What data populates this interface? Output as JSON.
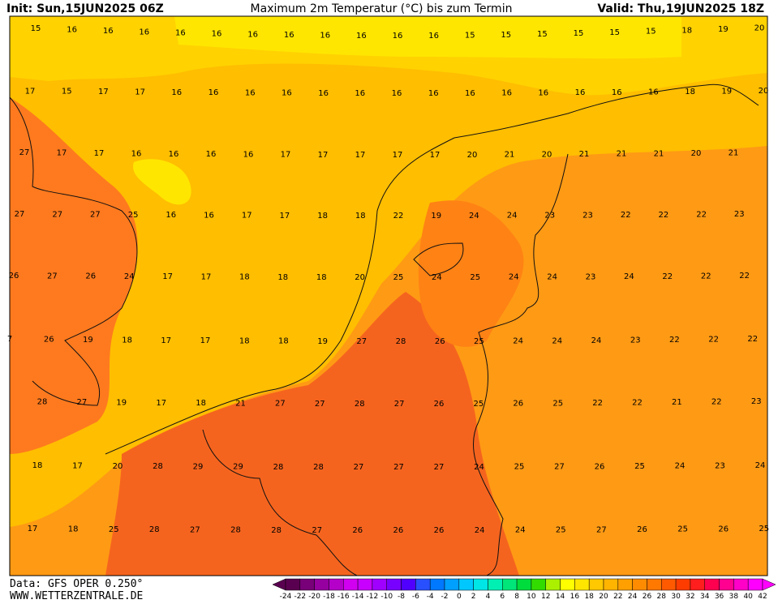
{
  "header": {
    "init": "Init: Sun,15JUN2025 06Z",
    "title": "Maximum 2m Temperatur (°C) bis zum Termin",
    "valid": "Valid: Thu,19JUN2025 18Z"
  },
  "footer": {
    "source": "Data: GFS OPER 0.250°",
    "site": "WWW.WETTERZENTRALE.DE"
  },
  "map": {
    "rows": [
      [
        15,
        16,
        16,
        16,
        16,
        16,
        16,
        16,
        16,
        16,
        16,
        16,
        15,
        15,
        15,
        15,
        15,
        15,
        18,
        19,
        20
      ],
      [
        17,
        15,
        17,
        17,
        16,
        16,
        16,
        16,
        16,
        16,
        16,
        16,
        16,
        16,
        16,
        16,
        16,
        16,
        18,
        19,
        20
      ],
      [
        27,
        17,
        17,
        16,
        16,
        16,
        16,
        17,
        17,
        17,
        17,
        17,
        20,
        21,
        20,
        21,
        21,
        21,
        20,
        21
      ],
      [
        27,
        27,
        27,
        25,
        16,
        16,
        17,
        17,
        18,
        18,
        22,
        19,
        24,
        24,
        23,
        23,
        22,
        22,
        22,
        23
      ],
      [
        26,
        27,
        26,
        24,
        17,
        17,
        18,
        18,
        18,
        20,
        25,
        24,
        25,
        24,
        24,
        23,
        24,
        22,
        22,
        22
      ],
      [
        7,
        26,
        19,
        18,
        17,
        17,
        18,
        18,
        19,
        27,
        28,
        26,
        25,
        24,
        24,
        24,
        23,
        22,
        22,
        22
      ],
      [
        28,
        27,
        19,
        17,
        18,
        21,
        27,
        27,
        28,
        27,
        26,
        25,
        26,
        25,
        22,
        22,
        21,
        22,
        23
      ],
      [
        18,
        17,
        20,
        28,
        29,
        29,
        28,
        28,
        27,
        27,
        27,
        24,
        25,
        27,
        26,
        25,
        24,
        23,
        24
      ],
      [
        17,
        18,
        25,
        28,
        27,
        28,
        28,
        27,
        26,
        26,
        26,
        24,
        24,
        25,
        27,
        26,
        25,
        26,
        25
      ]
    ]
  },
  "colorbar": {
    "ticks": [
      -24,
      -22,
      -20,
      -18,
      -16,
      -14,
      -12,
      -10,
      -8,
      -6,
      -4,
      -2,
      0,
      2,
      4,
      6,
      8,
      10,
      12,
      14,
      16,
      18,
      20,
      22,
      24,
      26,
      28,
      30,
      32,
      34,
      36,
      38,
      40,
      42
    ],
    "colors": [
      "#5a0050",
      "#780078",
      "#9600a0",
      "#b400c8",
      "#d200f0",
      "#c800ff",
      "#a000ff",
      "#7800ff",
      "#5000ff",
      "#2850ff",
      "#0078ff",
      "#00a0ff",
      "#00c8ff",
      "#00e6e6",
      "#00f0b4",
      "#00e678",
      "#00dc3c",
      "#32dc00",
      "#aaf000",
      "#ffff00",
      "#ffe600",
      "#ffc800",
      "#ffb400",
      "#ffa000",
      "#ff8c00",
      "#ff7800",
      "#ff5a00",
      "#ff3c00",
      "#ff1e1e",
      "#ff0050",
      "#ff0090",
      "#ff00c8",
      "#ff00ff"
    ]
  }
}
